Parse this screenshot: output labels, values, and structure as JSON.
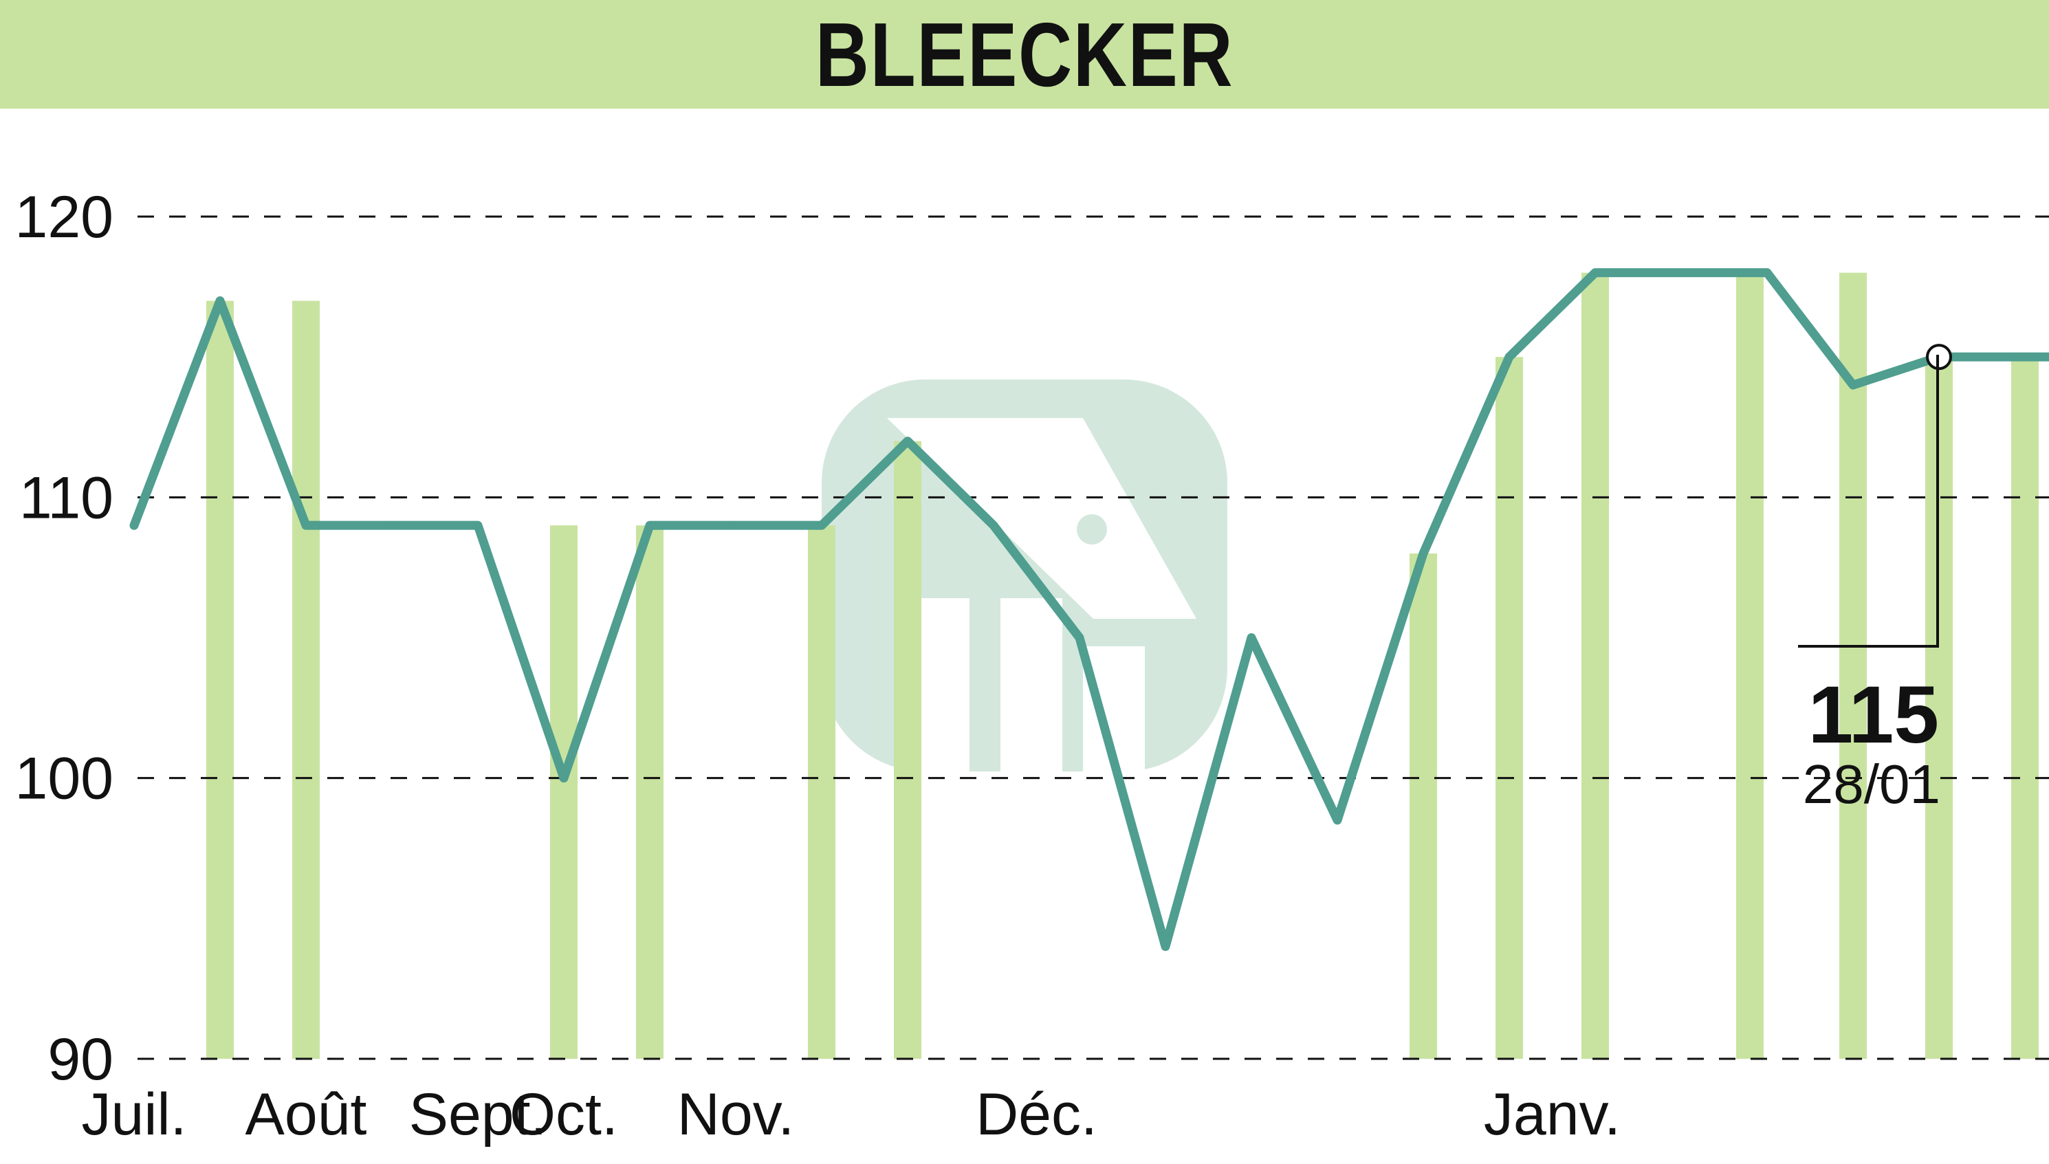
{
  "chart_data": {
    "type": "line",
    "title": "BLEECKER",
    "xlabel": "",
    "ylabel": "",
    "ylim": [
      90,
      120
    ],
    "yticks": [
      90,
      100,
      110,
      120
    ],
    "grid": true,
    "month_labels": [
      {
        "label": "Juil.",
        "at": 0
      },
      {
        "label": "Août",
        "at": 2
      },
      {
        "label": "Sept.",
        "at": 4
      },
      {
        "label": "Oct.",
        "at": 5
      },
      {
        "label": "Nov.",
        "at": 7
      },
      {
        "label": "Déc.",
        "at": 10.5
      },
      {
        "label": "Janv.",
        "at": 16.5
      }
    ],
    "series": [
      {
        "values": [
          109,
          117,
          109,
          109,
          109,
          100,
          109,
          109,
          109,
          112,
          109,
          105,
          94,
          105,
          98.5,
          108,
          115,
          118,
          118,
          118,
          114,
          115,
          115,
          115
        ]
      }
    ],
    "volume_bars": [
      {
        "at": 1,
        "value": 117
      },
      {
        "at": 2,
        "value": 117
      },
      {
        "at": 5,
        "value": 109
      },
      {
        "at": 6,
        "value": 109
      },
      {
        "at": 8,
        "value": 109
      },
      {
        "at": 9,
        "value": 112
      },
      {
        "at": 15,
        "value": 108
      },
      {
        "at": 16,
        "value": 115
      },
      {
        "at": 17,
        "value": 118
      },
      {
        "at": 18.8,
        "value": 118
      },
      {
        "at": 20,
        "value": 118
      },
      {
        "at": 21,
        "value": 115
      },
      {
        "at": 22,
        "value": 115
      }
    ],
    "marker_index": 21,
    "last_value": "115",
    "last_date": "28/01",
    "colors": {
      "line": "#4f9e8f",
      "bars": "#c8e3a0",
      "title_bar": "#c8e3a0",
      "grid": "#111111"
    }
  }
}
